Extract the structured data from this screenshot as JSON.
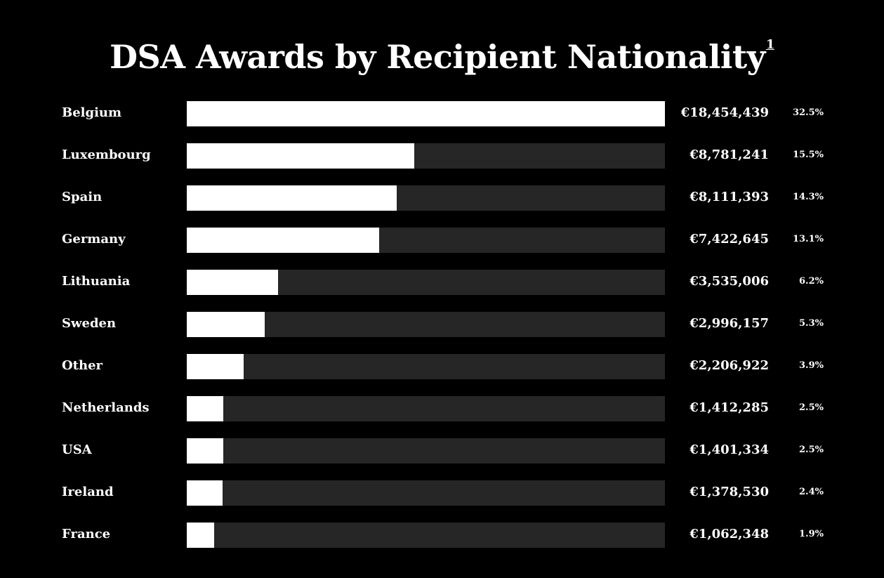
{
  "chart_data": {
    "type": "bar",
    "orientation": "horizontal",
    "title": "DSA Awards by Recipient Nationality",
    "title_footnote": "1",
    "categories": [
      "Belgium",
      "Luxembourg",
      "Spain",
      "Germany",
      "Lithuania",
      "Sweden",
      "Other",
      "Netherlands",
      "USA",
      "Ireland",
      "France"
    ],
    "values": [
      18454439,
      8781241,
      8111393,
      7422645,
      3535006,
      2996157,
      2206922,
      1412285,
      1401334,
      1378530,
      1062348
    ],
    "value_labels": [
      "€18,454,439",
      "€8,781,241",
      "€8,111,393",
      "€7,422,645",
      "€3,535,006",
      "€2,996,157",
      "€2,206,922",
      "€1,412,285",
      "€1,401,334",
      "€1,378,530",
      "€1,062,348"
    ],
    "percent_labels": [
      "32.5%",
      "15.5%",
      "14.3%",
      "13.1%",
      "6.2%",
      "5.3%",
      "3.9%",
      "2.5%",
      "2.5%",
      "2.4%",
      "1.9%"
    ],
    "xlim": [
      0,
      18454439
    ],
    "grid": false,
    "legend": "none",
    "colors": {
      "background": "#000000",
      "bar": "#ffffff",
      "track": "#262626",
      "text": "#ffffff"
    }
  }
}
